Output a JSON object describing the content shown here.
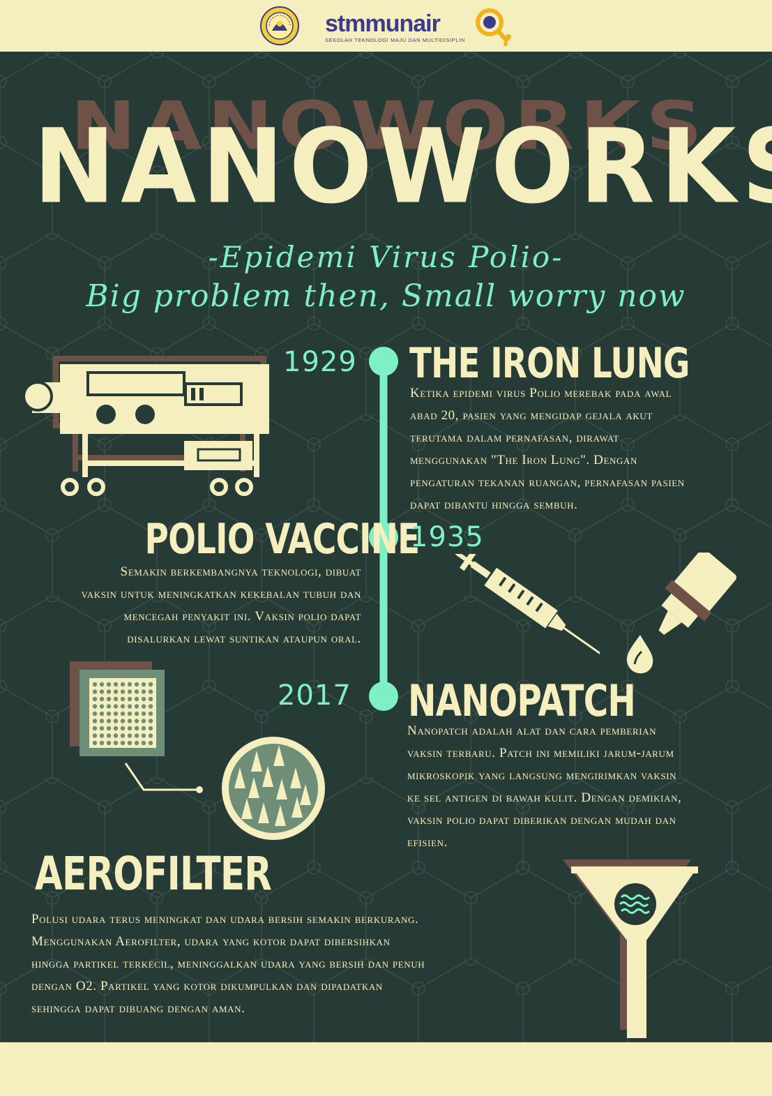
{
  "header": {
    "logo_main_a": "stmm",
    "logo_main_b": "unair",
    "logo_subtitle": "SEKOLAH TEKNOLOGI MAJU DAN MULTIDISIPLIN"
  },
  "title": "NANOWORKS",
  "subtitle_line1": "-Epidemi Virus Polio-",
  "subtitle_line2": "Big problem then, Small worry now",
  "timeline": [
    {
      "year": "1929",
      "heading": "THE IRON LUNG",
      "lines": [
        "Ketika epidemi virus Polio merebak pada awal",
        "abad 20, pasien yang mengidap gejala akut",
        "terutama dalam pernafasan, dirawat",
        "menggunakan \"The Iron Lung\". Dengan",
        "pengaturan tekanan ruangan, pernafasan pasien",
        "dapat dibantu hingga sembuh."
      ]
    },
    {
      "year": "1935",
      "heading": "POLIO VACCINE",
      "lines": [
        "Semakin berkembangnya teknologi, dibuat",
        "vaksin untuk meningkatkan kekebalan tubuh dan",
        "mencegah penyakit ini. Vaksin polio dapat",
        "disalurkan lewat suntikan ataupun oral."
      ]
    },
    {
      "year": "2017",
      "heading": "NANOPATCH",
      "lines": [
        "Nanopatch adalah alat dan cara pemberian",
        "vaksin terbaru. Patch ini memiliki jarum-jarum",
        "mikroskopik yang langsung mengirimkan vaksin",
        "ke sel antigen di bawah kulit. Dengan demikian,",
        "vaksin polio dapat diberikan dengan mudah dan",
        "efisien."
      ]
    }
  ],
  "aerofilter": {
    "heading": "AEROFILTER",
    "lines": [
      "Polusi udara terus meningkat dan udara bersih semakin berkurang.",
      "Menggunakan Aerofilter, udara yang kotor dapat dibersihkan",
      "hingga partikel terkecil, meninggalkan udara yang bersih dan penuh",
      "dengan O2. Partikel yang kotor dikumpulkan dan dipadatkan",
      "sehingga dapat dibuang dengan aman."
    ]
  },
  "colors": {
    "background": "#263a36",
    "cream": "#f5eebe",
    "mint": "#7ff0c6",
    "brown_shadow": "#6e5248",
    "logo_blue": "#3c3a8c",
    "logo_yellow": "#f2b21c"
  },
  "icons": [
    "university-seal-icon",
    "stmm-logo-icon",
    "iron-lung-icon",
    "syringe-icon",
    "dropper-icon",
    "nanopatch-icon",
    "microneedle-magnifier-icon",
    "funnel-filter-icon"
  ]
}
